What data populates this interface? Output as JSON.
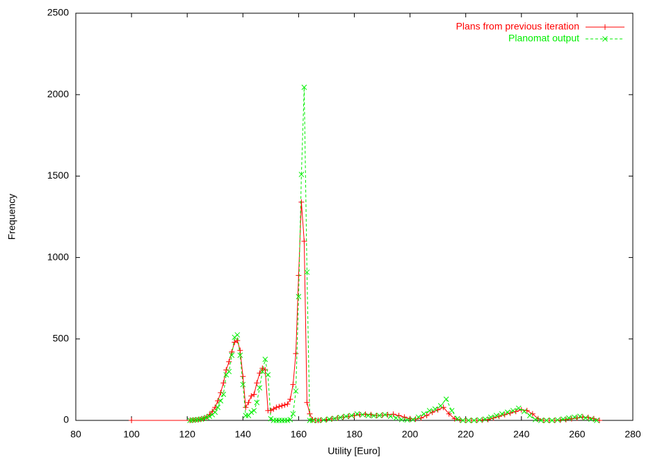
{
  "chart_data": {
    "type": "line",
    "xlabel": "Utility [Euro]",
    "ylabel": "Frequency",
    "xlim": [
      80,
      280
    ],
    "xticks": [
      80,
      100,
      120,
      140,
      160,
      180,
      200,
      220,
      240,
      260,
      280
    ],
    "ylim": [
      0,
      2500
    ],
    "yticks": [
      0,
      500,
      1000,
      1500,
      2000,
      2500
    ],
    "grid": false,
    "legend": "top-right",
    "series": [
      {
        "name": "Plans from previous iteration",
        "color": "#ff0000",
        "marker": "plus",
        "dashed": false,
        "x": [
          100,
          121,
          122,
          123,
          124,
          125,
          126,
          127,
          128,
          129,
          130,
          131,
          132,
          133,
          134,
          135,
          136,
          137,
          138,
          139,
          140,
          141,
          142,
          143,
          144,
          145,
          146,
          147,
          148,
          149,
          150,
          151,
          152,
          153,
          154,
          155,
          156,
          157,
          158,
          159,
          160,
          161,
          162,
          163,
          164,
          165,
          166,
          167,
          168,
          170,
          172,
          174,
          176,
          178,
          180,
          182,
          184,
          186,
          188,
          190,
          192,
          194,
          196,
          198,
          200,
          202,
          204,
          206,
          208,
          210,
          212,
          214,
          216,
          218,
          220,
          222,
          224,
          226,
          228,
          230,
          232,
          234,
          236,
          238,
          240,
          242,
          244,
          246,
          248,
          250,
          252,
          254,
          256,
          258,
          260,
          262,
          264,
          266,
          268
        ],
        "values": [
          0,
          0,
          2,
          3,
          5,
          8,
          12,
          20,
          35,
          55,
          80,
          120,
          170,
          230,
          310,
          360,
          420,
          480,
          490,
          430,
          270,
          80,
          110,
          150,
          160,
          230,
          290,
          320,
          310,
          60,
          60,
          70,
          80,
          85,
          90,
          95,
          100,
          130,
          220,
          410,
          890,
          1340,
          1100,
          110,
          40,
          5,
          0,
          0,
          2,
          5,
          10,
          15,
          20,
          25,
          30,
          35,
          38,
          35,
          30,
          32,
          35,
          38,
          30,
          20,
          10,
          8,
          15,
          30,
          50,
          65,
          80,
          40,
          10,
          2,
          0,
          0,
          0,
          2,
          5,
          15,
          25,
          35,
          45,
          55,
          65,
          60,
          40,
          10,
          0,
          0,
          0,
          2,
          5,
          10,
          15,
          20,
          18,
          10,
          0
        ]
      },
      {
        "name": "Planomat output",
        "color": "#00ee00",
        "marker": "cross",
        "dashed": true,
        "x": [
          121,
          122,
          123,
          124,
          125,
          126,
          127,
          128,
          129,
          130,
          131,
          132,
          133,
          134,
          135,
          136,
          137,
          138,
          139,
          140,
          141,
          142,
          143,
          144,
          145,
          146,
          147,
          148,
          149,
          150,
          151,
          152,
          153,
          154,
          155,
          156,
          157,
          158,
          159,
          160,
          161,
          162,
          163,
          164,
          165,
          167,
          169,
          171,
          173,
          175,
          177,
          179,
          181,
          183,
          185,
          187,
          189,
          191,
          193,
          195,
          197,
          199,
          201,
          203,
          205,
          207,
          209,
          211,
          213,
          215,
          217,
          219,
          221,
          223,
          225,
          227,
          229,
          231,
          233,
          235,
          237,
          239,
          241,
          243,
          245,
          247,
          249,
          251,
          253,
          255,
          257,
          259,
          261,
          263,
          265,
          267
        ],
        "values": [
          0,
          2,
          3,
          5,
          8,
          12,
          18,
          25,
          35,
          50,
          80,
          120,
          160,
          280,
          300,
          400,
          510,
          525,
          400,
          220,
          30,
          30,
          50,
          60,
          110,
          200,
          300,
          375,
          280,
          10,
          0,
          0,
          0,
          0,
          0,
          0,
          5,
          40,
          180,
          760,
          1510,
          2045,
          910,
          0,
          0,
          0,
          3,
          8,
          12,
          18,
          25,
          30,
          40,
          35,
          30,
          28,
          30,
          35,
          25,
          15,
          5,
          3,
          5,
          20,
          40,
          60,
          70,
          90,
          130,
          60,
          10,
          0,
          0,
          0,
          3,
          8,
          20,
          30,
          40,
          50,
          60,
          75,
          55,
          30,
          5,
          0,
          0,
          0,
          3,
          8,
          15,
          20,
          25,
          15,
          8,
          0
        ]
      }
    ]
  }
}
